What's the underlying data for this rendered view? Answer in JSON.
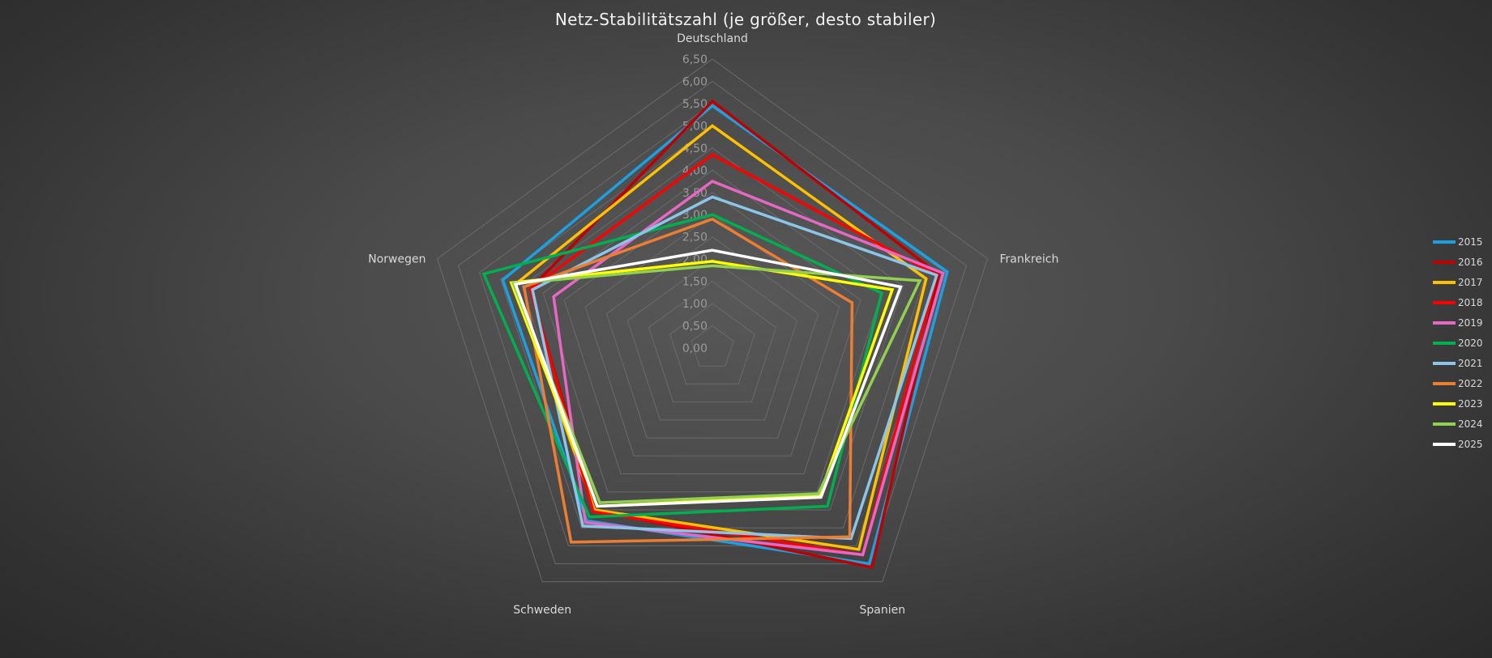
{
  "chart_data": {
    "type": "radar",
    "title": "Netz-Stabilitätszahl (je größer, desto stabiler)",
    "axes": [
      "Deutschland",
      "Frankreich",
      "Spanien",
      "Schweden",
      "Norwegen"
    ],
    "rlim": [
      0,
      6.5
    ],
    "ticks": [
      0,
      0.5,
      1,
      1.5,
      2,
      2.5,
      3,
      3.5,
      4,
      4.5,
      5,
      5.5,
      6,
      6.5
    ],
    "tick_labels": [
      "0,00",
      "0,50",
      "1,00",
      "1,50",
      "2,00",
      "2,50",
      "3,00",
      "3,50",
      "4,00",
      "4,50",
      "5,00",
      "5,50",
      "6,00",
      "6,50"
    ],
    "grid": true,
    "legend_position": "right",
    "series": [
      {
        "name": "2015",
        "color": "#1ba1e2",
        "values": [
          5.45,
          5.55,
          6.0,
          4.8,
          4.95
        ]
      },
      {
        "name": "2016",
        "color": "#c00000",
        "values": [
          5.55,
          5.35,
          6.1,
          4.5,
          4.3
        ]
      },
      {
        "name": "2017",
        "color": "#ffc000",
        "values": [
          5.0,
          5.05,
          5.6,
          4.5,
          4.65
        ]
      },
      {
        "name": "2018",
        "color": "#ff0000",
        "values": [
          4.35,
          5.3,
          5.75,
          4.55,
          4.3
        ]
      },
      {
        "name": "2019",
        "color": "#e767c4",
        "values": [
          3.75,
          5.45,
          5.75,
          4.85,
          3.75
        ]
      },
      {
        "name": "2020",
        "color": "#00b050",
        "values": [
          3.0,
          4.0,
          4.4,
          4.7,
          5.4
        ]
      },
      {
        "name": "2021",
        "color": "#8bc6ea",
        "values": [
          3.4,
          5.3,
          5.3,
          4.95,
          4.25
        ]
      },
      {
        "name": "2022",
        "color": "#ed7d31",
        "values": [
          2.9,
          3.3,
          5.25,
          5.4,
          4.45
        ]
      },
      {
        "name": "2023",
        "color": "#ffff00",
        "values": [
          1.95,
          4.25,
          4.1,
          4.4,
          4.75
        ]
      },
      {
        "name": "2024",
        "color": "#92d050",
        "values": [
          1.85,
          4.9,
          4.05,
          4.3,
          4.7
        ]
      },
      {
        "name": "2025",
        "color": "#ffffff",
        "values": [
          2.2,
          4.45,
          4.15,
          4.4,
          4.65
        ]
      }
    ]
  }
}
